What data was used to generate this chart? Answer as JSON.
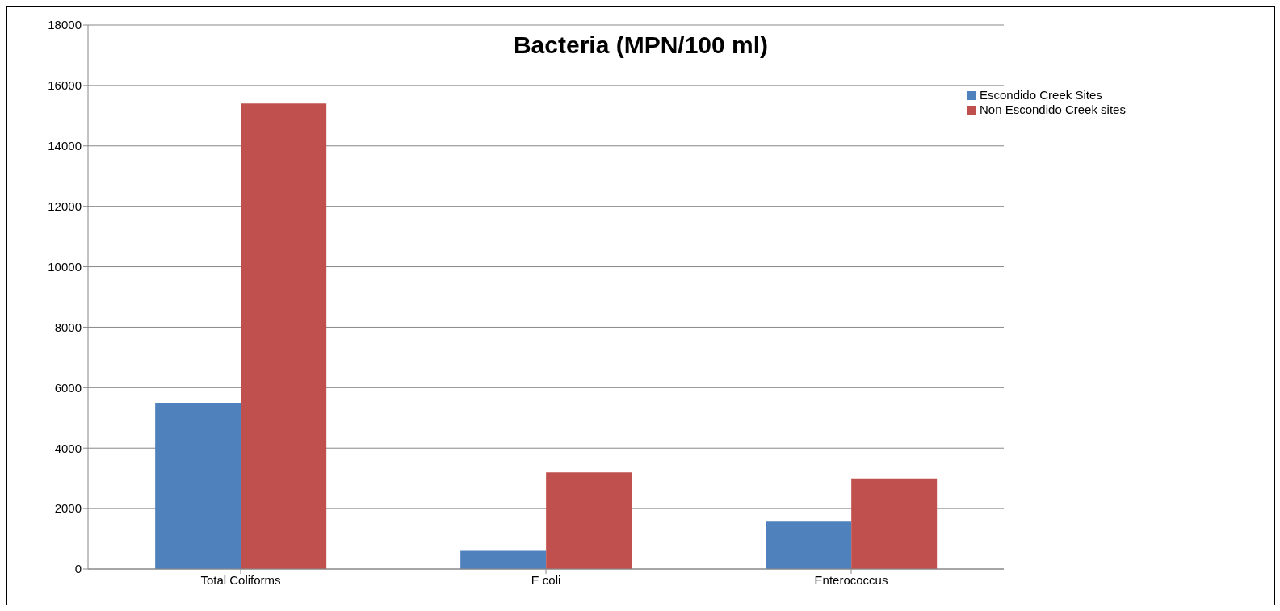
{
  "chart_data": {
    "type": "bar",
    "title": "Bacteria (MPN/100 ml)",
    "categories": [
      "Total Coliforms",
      "E coli",
      "Enterococcus"
    ],
    "series": [
      {
        "name": "Escondido Creek Sites",
        "color": "#4f81bd",
        "values": [
          5500,
          600,
          1570
        ]
      },
      {
        "name": "Non Escondido Creek sites",
        "color": "#c0504d",
        "values": [
          15400,
          3200,
          3000
        ]
      }
    ],
    "ylim": [
      0,
      18000
    ],
    "yticks": [
      0,
      2000,
      4000,
      6000,
      8000,
      10000,
      12000,
      14000,
      16000,
      18000
    ],
    "grid": "y",
    "legend": "top right"
  }
}
